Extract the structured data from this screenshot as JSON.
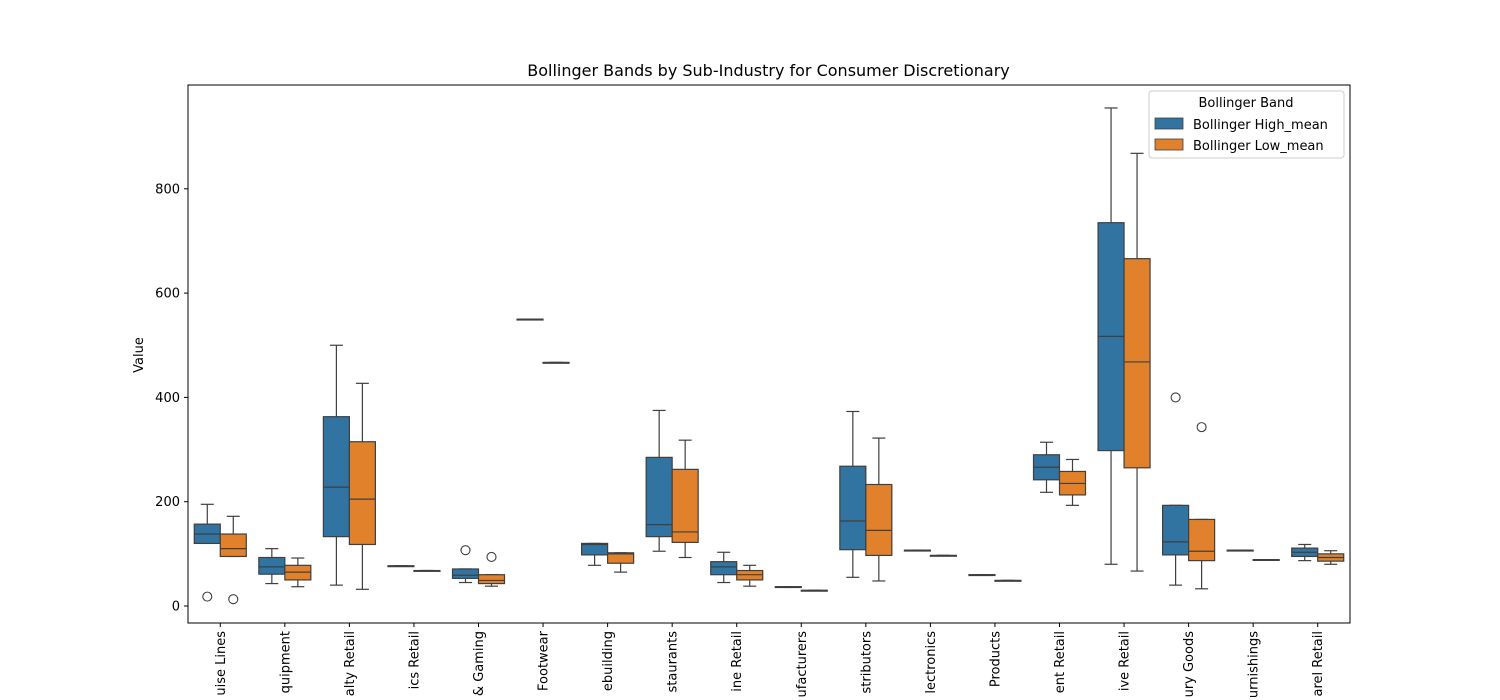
{
  "chart_data": {
    "type": "box",
    "title": "Bollinger Bands by Sub-Industry for Consumer Discretionary",
    "xlabel": "",
    "ylabel": "Value",
    "ylim": [
      -32,
      990
    ],
    "yticks": [
      0,
      200,
      400,
      600,
      800
    ],
    "legend": {
      "title": "Bollinger Band",
      "placement": "top-right",
      "entries": [
        "Bollinger High_mean",
        "Bollinger Low_mean"
      ]
    },
    "colors": {
      "high": "#3274a1",
      "low": "#e1812c"
    },
    "categories": [
      "uise Lines",
      "quipment",
      "alty Retail",
      "ics Retail",
      "& Gaming",
      "Footwear",
      "ebuilding",
      "staurants",
      "ine Retail",
      "ufacturers",
      "stributors",
      "lectronics",
      "Products",
      "ent Retail",
      "ive Retail",
      "ury Goods",
      "urnishings",
      "arel Retail"
    ],
    "series": [
      {
        "name": "Bollinger High_mean",
        "boxes": [
          {
            "whislo": 120,
            "q1": 120,
            "med": 138,
            "q3": 157,
            "whishi": 195,
            "fliers": [
              18
            ]
          },
          {
            "whislo": 43,
            "q1": 61,
            "med": 75,
            "q3": 93,
            "whishi": 110,
            "fliers": []
          },
          {
            "whislo": 40,
            "q1": 133,
            "med": 228,
            "q3": 363,
            "whishi": 500,
            "fliers": []
          },
          {
            "whislo": 77,
            "q1": 77,
            "med": 77,
            "q3": 77,
            "whishi": 77,
            "fliers": []
          },
          {
            "whislo": 45,
            "q1": 53,
            "med": 59,
            "q3": 71,
            "whishi": 71,
            "fliers": [
              107
            ]
          },
          {
            "whislo": 550,
            "q1": 550,
            "med": 550,
            "q3": 550,
            "whishi": 550,
            "fliers": []
          },
          {
            "whislo": 78,
            "q1": 98,
            "med": 118,
            "q3": 120,
            "whishi": 120,
            "fliers": []
          },
          {
            "whislo": 105,
            "q1": 133,
            "med": 156,
            "q3": 285,
            "whishi": 375,
            "fliers": []
          },
          {
            "whislo": 45,
            "q1": 60,
            "med": 75,
            "q3": 85,
            "whishi": 103,
            "fliers": []
          },
          {
            "whislo": 37,
            "q1": 37,
            "med": 37,
            "q3": 37,
            "whishi": 37,
            "fliers": []
          },
          {
            "whislo": 55,
            "q1": 108,
            "med": 163,
            "q3": 268,
            "whishi": 373,
            "fliers": []
          },
          {
            "whislo": 107,
            "q1": 107,
            "med": 107,
            "q3": 107,
            "whishi": 107,
            "fliers": []
          },
          {
            "whislo": 60,
            "q1": 60,
            "med": 60,
            "q3": 60,
            "whishi": 60,
            "fliers": []
          },
          {
            "whislo": 218,
            "q1": 242,
            "med": 266,
            "q3": 290,
            "whishi": 314,
            "fliers": []
          },
          {
            "whislo": 80,
            "q1": 298,
            "med": 517,
            "q3": 735,
            "whishi": 955,
            "fliers": []
          },
          {
            "whislo": 40,
            "q1": 98,
            "med": 123,
            "q3": 193,
            "whishi": 193,
            "fliers": [
              400
            ]
          },
          {
            "whislo": 107,
            "q1": 107,
            "med": 107,
            "q3": 107,
            "whishi": 107,
            "fliers": []
          },
          {
            "whislo": 87,
            "q1": 95,
            "med": 103,
            "q3": 111,
            "whishi": 118,
            "fliers": []
          }
        ]
      },
      {
        "name": "Bollinger Low_mean",
        "boxes": [
          {
            "whislo": 95,
            "q1": 95,
            "med": 110,
            "q3": 138,
            "whishi": 172,
            "fliers": [
              13
            ]
          },
          {
            "whislo": 37,
            "q1": 50,
            "med": 65,
            "q3": 78,
            "whishi": 92,
            "fliers": []
          },
          {
            "whislo": 32,
            "q1": 118,
            "med": 205,
            "q3": 315,
            "whishi": 427,
            "fliers": []
          },
          {
            "whislo": 68,
            "q1": 68,
            "med": 68,
            "q3": 68,
            "whishi": 68,
            "fliers": []
          },
          {
            "whislo": 38,
            "q1": 43,
            "med": 49,
            "q3": 60,
            "whishi": 60,
            "fliers": [
              94
            ]
          },
          {
            "whislo": 467,
            "q1": 467,
            "med": 467,
            "q3": 467,
            "whishi": 467,
            "fliers": []
          },
          {
            "whislo": 65,
            "q1": 82,
            "med": 100,
            "q3": 102,
            "whishi": 102,
            "fliers": []
          },
          {
            "whislo": 93,
            "q1": 122,
            "med": 142,
            "q3": 262,
            "whishi": 318,
            "fliers": []
          },
          {
            "whislo": 38,
            "q1": 50,
            "med": 60,
            "q3": 68,
            "whishi": 78,
            "fliers": []
          },
          {
            "whislo": 30,
            "q1": 30,
            "med": 30,
            "q3": 30,
            "whishi": 30,
            "fliers": []
          },
          {
            "whislo": 48,
            "q1": 97,
            "med": 145,
            "q3": 233,
            "whishi": 322,
            "fliers": []
          },
          {
            "whislo": 97,
            "q1": 97,
            "med": 97,
            "q3": 97,
            "whishi": 97,
            "fliers": []
          },
          {
            "whislo": 49,
            "q1": 49,
            "med": 49,
            "q3": 49,
            "whishi": 49,
            "fliers": []
          },
          {
            "whislo": 193,
            "q1": 213,
            "med": 235,
            "q3": 258,
            "whishi": 281,
            "fliers": []
          },
          {
            "whislo": 67,
            "q1": 265,
            "med": 468,
            "q3": 666,
            "whishi": 868,
            "fliers": []
          },
          {
            "whislo": 33,
            "q1": 87,
            "med": 105,
            "q3": 166,
            "whishi": 166,
            "fliers": [
              343
            ]
          },
          {
            "whislo": 89,
            "q1": 89,
            "med": 89,
            "q3": 89,
            "whishi": 89,
            "fliers": []
          },
          {
            "whislo": 80,
            "q1": 86,
            "med": 93,
            "q3": 100,
            "whishi": 106,
            "fliers": []
          }
        ]
      }
    ]
  }
}
